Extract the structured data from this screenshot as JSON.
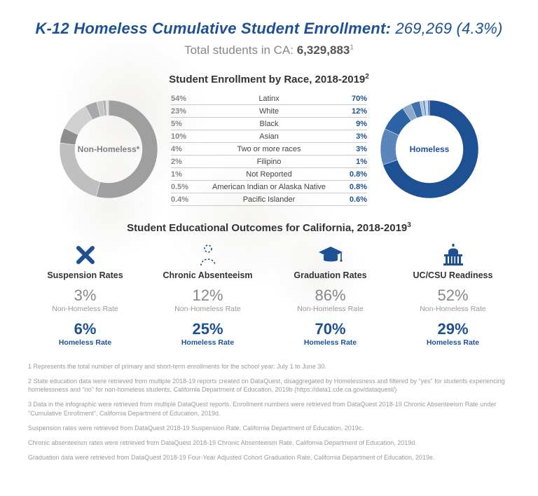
{
  "header": {
    "title_bold": "K-12 Homeless Cumulative Student Enrollment:",
    "title_accent": "269,269 (4.3%)",
    "subtitle_pre": "Total students in CA: ",
    "subtitle_val": "6,329,883",
    "subtitle_sup": "1"
  },
  "race": {
    "heading": "Student Enrollment by Race, 2018-2019",
    "heading_sup": "2",
    "non_homeless_label": "Non-Homeless*",
    "homeless_label": "Homeless",
    "rows": [
      {
        "left": "54%",
        "label": "Latinx",
        "right": "70%"
      },
      {
        "left": "23%",
        "label": "White",
        "right": "12%"
      },
      {
        "left": "5%",
        "label": "Black",
        "right": "9%"
      },
      {
        "left": "10%",
        "label": "Asian",
        "right": "3%"
      },
      {
        "left": "4%",
        "label": "Two or more races",
        "right": "3%"
      },
      {
        "left": "2%",
        "label": "Filipino",
        "right": "1%"
      },
      {
        "left": "1%",
        "label": "Not Reported",
        "right": "0.8%"
      },
      {
        "left": "0.5%",
        "label": "American Indian or Alaska Native",
        "right": "0.8%"
      },
      {
        "left": "0.4%",
        "label": "Pacific Islander",
        "right": "0.6%"
      }
    ],
    "non_homeless_donut": {
      "segments": [
        {
          "pct": 54,
          "color": "#9f9f9f"
        },
        {
          "pct": 23,
          "color": "#bfbfbf"
        },
        {
          "pct": 5,
          "color": "#8e8e8e"
        },
        {
          "pct": 10,
          "color": "#d0d0d0"
        },
        {
          "pct": 4,
          "color": "#a8a8a8"
        },
        {
          "pct": 2,
          "color": "#c4c4c4"
        },
        {
          "pct": 1,
          "color": "#b0b0b0"
        },
        {
          "pct": 0.5,
          "color": "#d6d6d6"
        },
        {
          "pct": 0.4,
          "color": "#c8c8c8"
        }
      ],
      "outer": 70,
      "inner": 48
    },
    "homeless_donut": {
      "segments": [
        {
          "pct": 70,
          "color": "#1d5194"
        },
        {
          "pct": 12,
          "color": "#5b86bb"
        },
        {
          "pct": 9,
          "color": "#2b63a4"
        },
        {
          "pct": 3,
          "color": "#8aa9cd"
        },
        {
          "pct": 3,
          "color": "#3e72ad"
        },
        {
          "pct": 1,
          "color": "#a7c0dc"
        },
        {
          "pct": 0.8,
          "color": "#6f95c3"
        },
        {
          "pct": 0.8,
          "color": "#c1d2e6"
        },
        {
          "pct": 0.6,
          "color": "#4d7db3"
        }
      ],
      "outer": 70,
      "inner": 48
    }
  },
  "outcomes": {
    "heading": "Student Educational Outcomes for California, 2018-2019",
    "heading_sup": "3",
    "nh_label": "Non-Homeless Rate",
    "h_label": "Homeless Rate",
    "items": [
      {
        "icon": "x-icon",
        "title": "Suspension Rates",
        "nh": "3%",
        "h": "6%"
      },
      {
        "icon": "person-dashed-icon",
        "title": "Chronic Absenteeism",
        "nh": "12%",
        "h": "25%"
      },
      {
        "icon": "grad-cap-icon",
        "title": "Graduation Rates",
        "nh": "86%",
        "h": "70%"
      },
      {
        "icon": "capitol-icon",
        "title": "UC/CSU Readiness",
        "nh": "52%",
        "h": "29%"
      }
    ]
  },
  "footnotes": [
    "1 Represents the total number of primary and short-term enrollments for the school year: July 1 to June 30.",
    "2 State education data were retrieved from multiple 2018-19 reports created on DataQuest, disaggregated by Homelessness and filtered by \"yes\" for students experiencing homelessness and \"no\" for non-homeless students, California Department of Education, 2019b (https://data1.cde.ca.gov/dataquest/)",
    "3 Data in the infographic were retrieved from multiple DataQuest reports. Enrollment numbers were retrieved from DataQuest 2018-19 Chronic Absenteeism Rate under \"Cumulative Enrollment\", California Department of Education, 2019d.",
    "Suspension rates were retrieved from DataQuest 2018-19 Suspension Rate, California Department of Education, 2019c.",
    "Chronic absenteeism rates were retrieved from DataQuest 2018-19 Chronic Absenteeism Rate, California Department of Education, 2019d.",
    "Graduation data were retrieved from DataQuest 2018-19 Four-Year Adjusted Cohort Graduation Rate, California Department of Education, 2019e."
  ],
  "colors": {
    "brand": "#1d5194",
    "muted": "#888888"
  }
}
